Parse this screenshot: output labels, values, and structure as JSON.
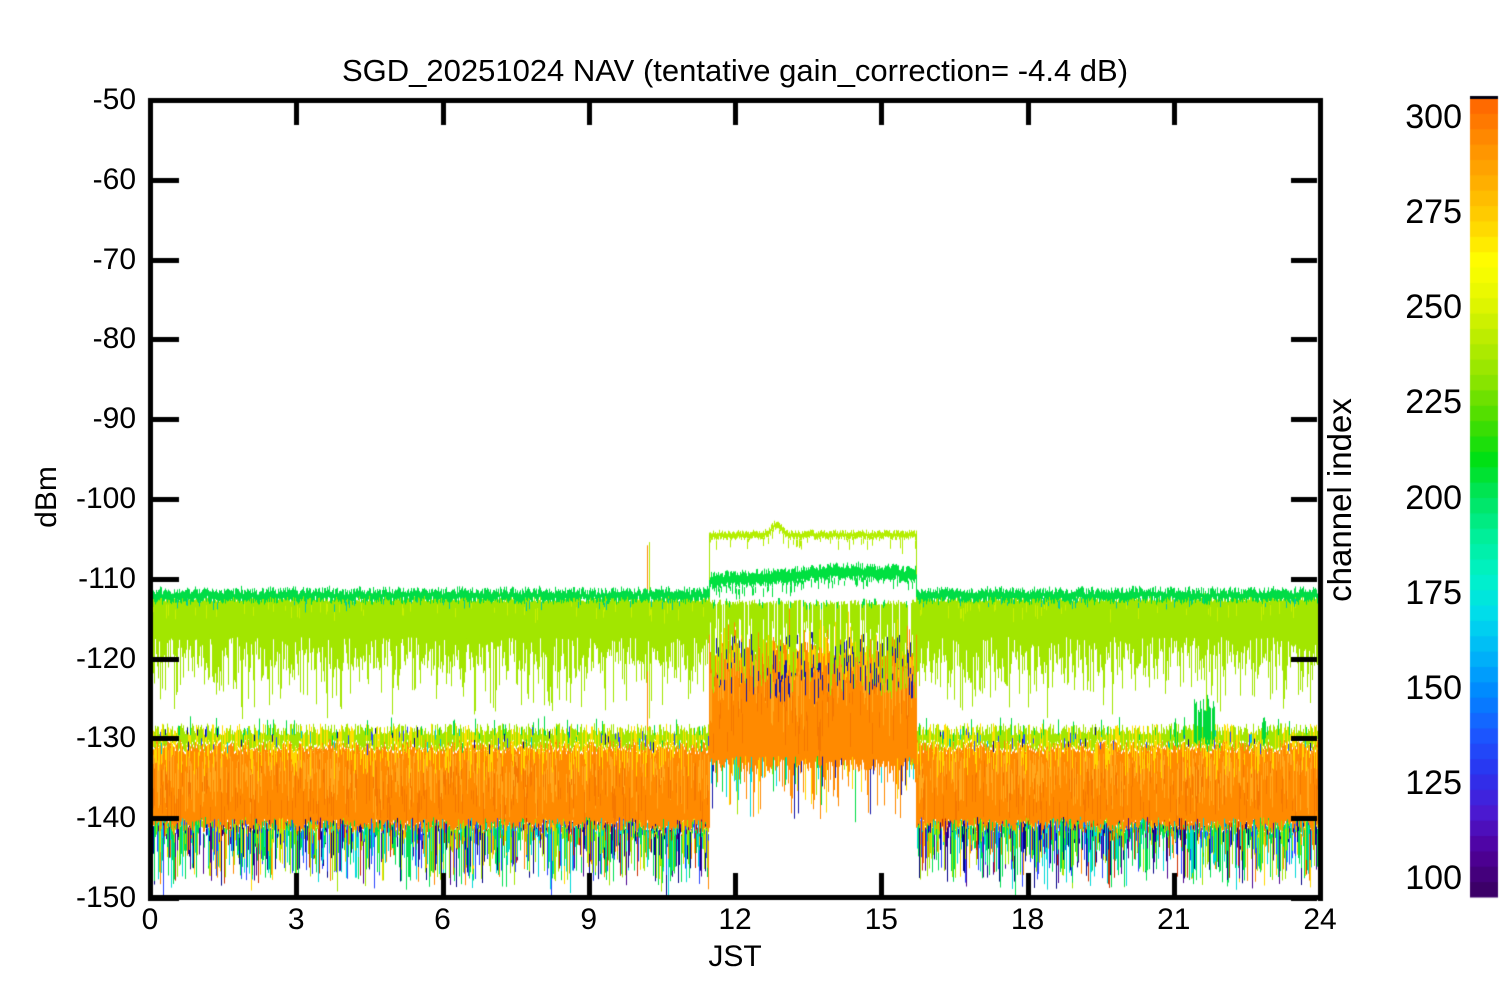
{
  "page": {
    "background": "#ffffff"
  },
  "chart_data": {
    "type": "line",
    "title": "SGD_20251024 NAV (tentative gain_correction= -4.4 dB)",
    "xlabel": "JST",
    "ylabel": "dBm",
    "xlim": [
      0,
      24
    ],
    "ylim": [
      -150,
      -50
    ],
    "xticks": [
      0,
      3,
      6,
      9,
      12,
      15,
      18,
      21,
      24
    ],
    "yticks": [
      -50,
      -60,
      -70,
      -80,
      -90,
      -100,
      -110,
      -120,
      -130,
      -140,
      -150
    ],
    "grid": false,
    "frame_color": "#000000",
    "colorbar": {
      "label": "channel index",
      "ticks": [
        300,
        275,
        250,
        225,
        200,
        175,
        150,
        125,
        100
      ],
      "value_range": [
        95,
        305
      ],
      "gradient_low_to_high": [
        "#3c0068",
        "#50009c",
        "#4b1ad2",
        "#2a34f0",
        "#1b58ff",
        "#0087ff",
        "#00b4f8",
        "#00dcec",
        "#00f2c8",
        "#00ef9a",
        "#00e560",
        "#00e012",
        "#4ade00",
        "#8ce400",
        "#b8ec00",
        "#e2f600",
        "#ffff00",
        "#ffd400",
        "#ffb000",
        "#ff9000",
        "#ff6a00"
      ]
    },
    "series_summary": [
      {
        "name": "quiet green channel line",
        "level_dbm": -112,
        "t_range": [
          0,
          24
        ],
        "color": "#00dc46"
      },
      {
        "name": "chartreuse channel cluster band",
        "top_dbm": -112.2,
        "dense_bottom_dbm": -120,
        "spike_bottom_dbm": -127.8,
        "t_range": [
          0,
          24
        ],
        "color": "#a2e600"
      },
      {
        "name": "orange high-channel noise floor",
        "top_dbm": -130.4,
        "bottom_dbm": -141,
        "t_range": [
          0,
          24
        ],
        "color": "#ff8a00"
      },
      {
        "name": "low-channel noise tail",
        "top_dbm": -140.5,
        "typical_bottom_dbm": -147,
        "max_bottom_dbm": -149.5
      },
      {
        "name": "daytime elevated window",
        "t_range": [
          11.47,
          15.71
        ],
        "top_line_dbm": -104.4,
        "green_line_dbm": -109.8,
        "orange_top_dbm": -118.5,
        "floor_dbm": -140
      }
    ],
    "events": {
      "narrow_spike_pair": {
        "t": 10.2,
        "peak_dbm": -105.5,
        "colors": [
          "#ff8a00",
          "#b4ee00"
        ]
      },
      "green_bursts": [
        {
          "t": 21.02,
          "width_h": 0.1,
          "peak_dbm": -127.0
        },
        {
          "t": 21.62,
          "width_h": 0.42,
          "peak_dbm": -124.3
        },
        {
          "t": 22.84,
          "width_h": 0.08,
          "peak_dbm": -126.2
        }
      ]
    },
    "render": {
      "window_t": [
        11.458,
        15.723
      ],
      "colors": {
        "chartreuse": "#a2e600",
        "chartreuse_bright": "#c8f000",
        "green": "#00dc46",
        "green_window": "#00e040",
        "topline": "#b4ee00",
        "orange": "#ff8a00",
        "orange_light": "#ffa81e",
        "orange_dark": "#f57800",
        "yellow": "#ffd800",
        "yellow2": "#ffe000",
        "navy": "#1616a8",
        "teal": "#00c8a0",
        "burst_green": "#00d83c"
      },
      "tail_palette": [
        [
          "#00e050",
          0.26
        ],
        [
          "#00d8d8",
          0.14
        ],
        [
          "#a2e600",
          0.16
        ],
        [
          "#2a44ff",
          0.12
        ],
        [
          "#000088",
          0.1
        ],
        [
          "#4a0090",
          0.08
        ],
        [
          "#ff8a00",
          0.06
        ],
        [
          "#ffd800",
          0.04
        ],
        [
          "#cc2e00",
          0.04
        ]
      ],
      "dot_palette": [
        [
          "#2a44ff",
          0.35
        ],
        [
          "#000090",
          0.3
        ],
        [
          "#00c8e0",
          0.2
        ],
        [
          "#00dc46",
          0.15
        ]
      ],
      "below_palette": [
        [
          "#ff8a00",
          0.5
        ],
        [
          "#ffd800",
          0.12
        ],
        [
          "#00dc46",
          0.13
        ],
        [
          "#00d8d8",
          0.09
        ],
        [
          "#1616a8",
          0.09
        ],
        [
          "#a2e600",
          0.07
        ]
      ],
      "window_green_pts": [
        [
          11.47,
          -110.15
        ],
        [
          12.6,
          -109.85
        ],
        [
          14.2,
          -109.05
        ],
        [
          15.3,
          -109.3
        ],
        [
          15.72,
          -109.45
        ]
      ],
      "top_line": {
        "level": -104.45,
        "bump_t": 12.85,
        "bump_sigma": 0.14,
        "bump_amp": 1.35,
        "notch_t": 15.42
      },
      "bands": {
        "green_line_level": -112.0,
        "band_top": -111.8,
        "band_dense_bottom_min": -117.3,
        "band_dense_bottom_rand": 4.3,
        "fringe_top": -128.1,
        "orange_top": -130.4,
        "orange_bottom": -140.1,
        "tail_clamp": -149.8,
        "win_orange_top": -118.5,
        "win_orange_bottom": -132.6,
        "win_floor": -140.5,
        "navy_top": -116.6,
        "navy_span": 6.6
      }
    }
  }
}
